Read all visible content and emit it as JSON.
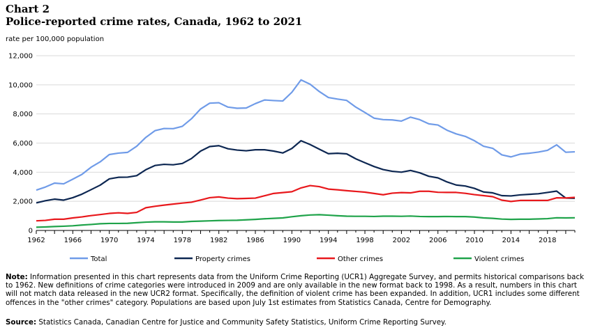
{
  "header": {
    "chart_number": "Chart 2",
    "title": "Police-reported crime rates, Canada, 1962 to 2021",
    "y_unit": "rate per 100,000 population"
  },
  "footer": {
    "note_label": "Note:",
    "note_text": "Information presented in this chart represents data from the Uniform Crime Reporting (UCR1) Aggregate Survey, and permits historical comparisons back to 1962. New definitions of crime categories were introduced in 2009 and are only available in the new format back to 1998. As a result, numbers in this chart will not match data released in the new UCR2 format. Specifically, the definition of violent crime has been expanded. In addition, UCR1 includes some different offences in the \"other crimes\" category. Populations are based upon July 1st estimates from Statistics Canada, Centre for Demography.",
    "source_label": "Source:",
    "source_text": "Statistics Canada, Canadian Centre for Justice and Community Safety Statistics, Uniform Crime Reporting Survey."
  },
  "chart_data": {
    "type": "line",
    "title": "Police-reported crime rates, Canada, 1962 to 2021",
    "ylabel": "rate per 100,000 population",
    "xlabel": "",
    "ylim": [
      0,
      12000
    ],
    "xlim": [
      1962,
      2021
    ],
    "y_ticks": [
      0,
      2000,
      4000,
      6000,
      8000,
      10000,
      12000
    ],
    "y_tick_labels": [
      "0",
      "2,000",
      "4,000",
      "6,000",
      "8,000",
      "10,000",
      "12,000"
    ],
    "x_ticks": [
      1962,
      1966,
      1970,
      1974,
      1978,
      1982,
      1986,
      1990,
      1994,
      1998,
      2002,
      2006,
      2010,
      2014,
      2018
    ],
    "x_tick_labels": [
      "1962",
      "1966",
      "1970",
      "1974",
      "1978",
      "1982",
      "1986",
      "1990",
      "1994",
      "1998",
      "2002",
      "2006",
      "2010",
      "2014",
      "2018"
    ],
    "grid": "horizontal",
    "legend_position": "bottom",
    "x": [
      1962,
      1963,
      1964,
      1965,
      1966,
      1967,
      1968,
      1969,
      1970,
      1971,
      1972,
      1973,
      1974,
      1975,
      1976,
      1977,
      1978,
      1979,
      1980,
      1981,
      1982,
      1983,
      1984,
      1985,
      1986,
      1987,
      1988,
      1989,
      1990,
      1991,
      1992,
      1993,
      1994,
      1995,
      1996,
      1997,
      1998,
      1999,
      2000,
      2001,
      2002,
      2003,
      2004,
      2005,
      2006,
      2007,
      2008,
      2009,
      2010,
      2011,
      2012,
      2013,
      2014,
      2015,
      2016,
      2017,
      2018,
      2019,
      2020,
      2021
    ],
    "series": [
      {
        "name": "Total",
        "color": "#6f9be8",
        "values": [
          2770,
          2980,
          3250,
          3200,
          3520,
          3850,
          4340,
          4710,
          5210,
          5310,
          5360,
          5780,
          6390,
          6850,
          7000,
          6990,
          7150,
          7670,
          8340,
          8740,
          8770,
          8470,
          8390,
          8410,
          8710,
          8960,
          8920,
          8890,
          9490,
          10340,
          10040,
          9540,
          9130,
          9020,
          8930,
          8470,
          8100,
          7710,
          7610,
          7590,
          7510,
          7780,
          7610,
          7320,
          7240,
          6880,
          6630,
          6460,
          6160,
          5780,
          5640,
          5190,
          5050,
          5240,
          5300,
          5380,
          5500,
          5880,
          5370,
          5400
        ]
      },
      {
        "name": "Property crimes",
        "color": "#0d2752",
        "values": [
          1890,
          2040,
          2150,
          2080,
          2250,
          2490,
          2800,
          3110,
          3540,
          3650,
          3660,
          3760,
          4170,
          4460,
          4540,
          4510,
          4600,
          4940,
          5450,
          5760,
          5820,
          5610,
          5520,
          5470,
          5540,
          5540,
          5450,
          5320,
          5630,
          6160,
          5900,
          5580,
          5270,
          5300,
          5260,
          4920,
          4650,
          4390,
          4180,
          4060,
          4000,
          4120,
          3960,
          3720,
          3610,
          3330,
          3120,
          3050,
          2890,
          2640,
          2580,
          2390,
          2370,
          2440,
          2480,
          2520,
          2610,
          2700,
          2220,
          2210
        ]
      },
      {
        "name": "Other crimes",
        "color": "#e8181c",
        "values": [
          660,
          690,
          770,
          770,
          860,
          930,
          1020,
          1090,
          1170,
          1210,
          1170,
          1240,
          1560,
          1660,
          1740,
          1810,
          1880,
          1940,
          2090,
          2250,
          2300,
          2220,
          2180,
          2200,
          2220,
          2380,
          2540,
          2600,
          2660,
          2920,
          3080,
          3010,
          2840,
          2790,
          2730,
          2680,
          2630,
          2540,
          2450,
          2560,
          2600,
          2580,
          2690,
          2690,
          2620,
          2610,
          2610,
          2550,
          2460,
          2390,
          2320,
          2080,
          1990,
          2060,
          2060,
          2060,
          2060,
          2240,
          2230,
          2270
        ]
      },
      {
        "name": "Violent crimes",
        "color": "#1fa34a",
        "values": [
          220,
          240,
          270,
          290,
          320,
          370,
          410,
          460,
          480,
          480,
          490,
          530,
          570,
          590,
          590,
          580,
          580,
          620,
          640,
          660,
          680,
          690,
          700,
          730,
          760,
          800,
          830,
          860,
          940,
          1010,
          1060,
          1080,
          1050,
          1010,
          980,
          970,
          970,
          960,
          980,
          980,
          970,
          990,
          960,
          950,
          950,
          960,
          950,
          950,
          920,
          860,
          830,
          780,
          760,
          770,
          770,
          790,
          810,
          870,
          860,
          870
        ]
      }
    ]
  }
}
